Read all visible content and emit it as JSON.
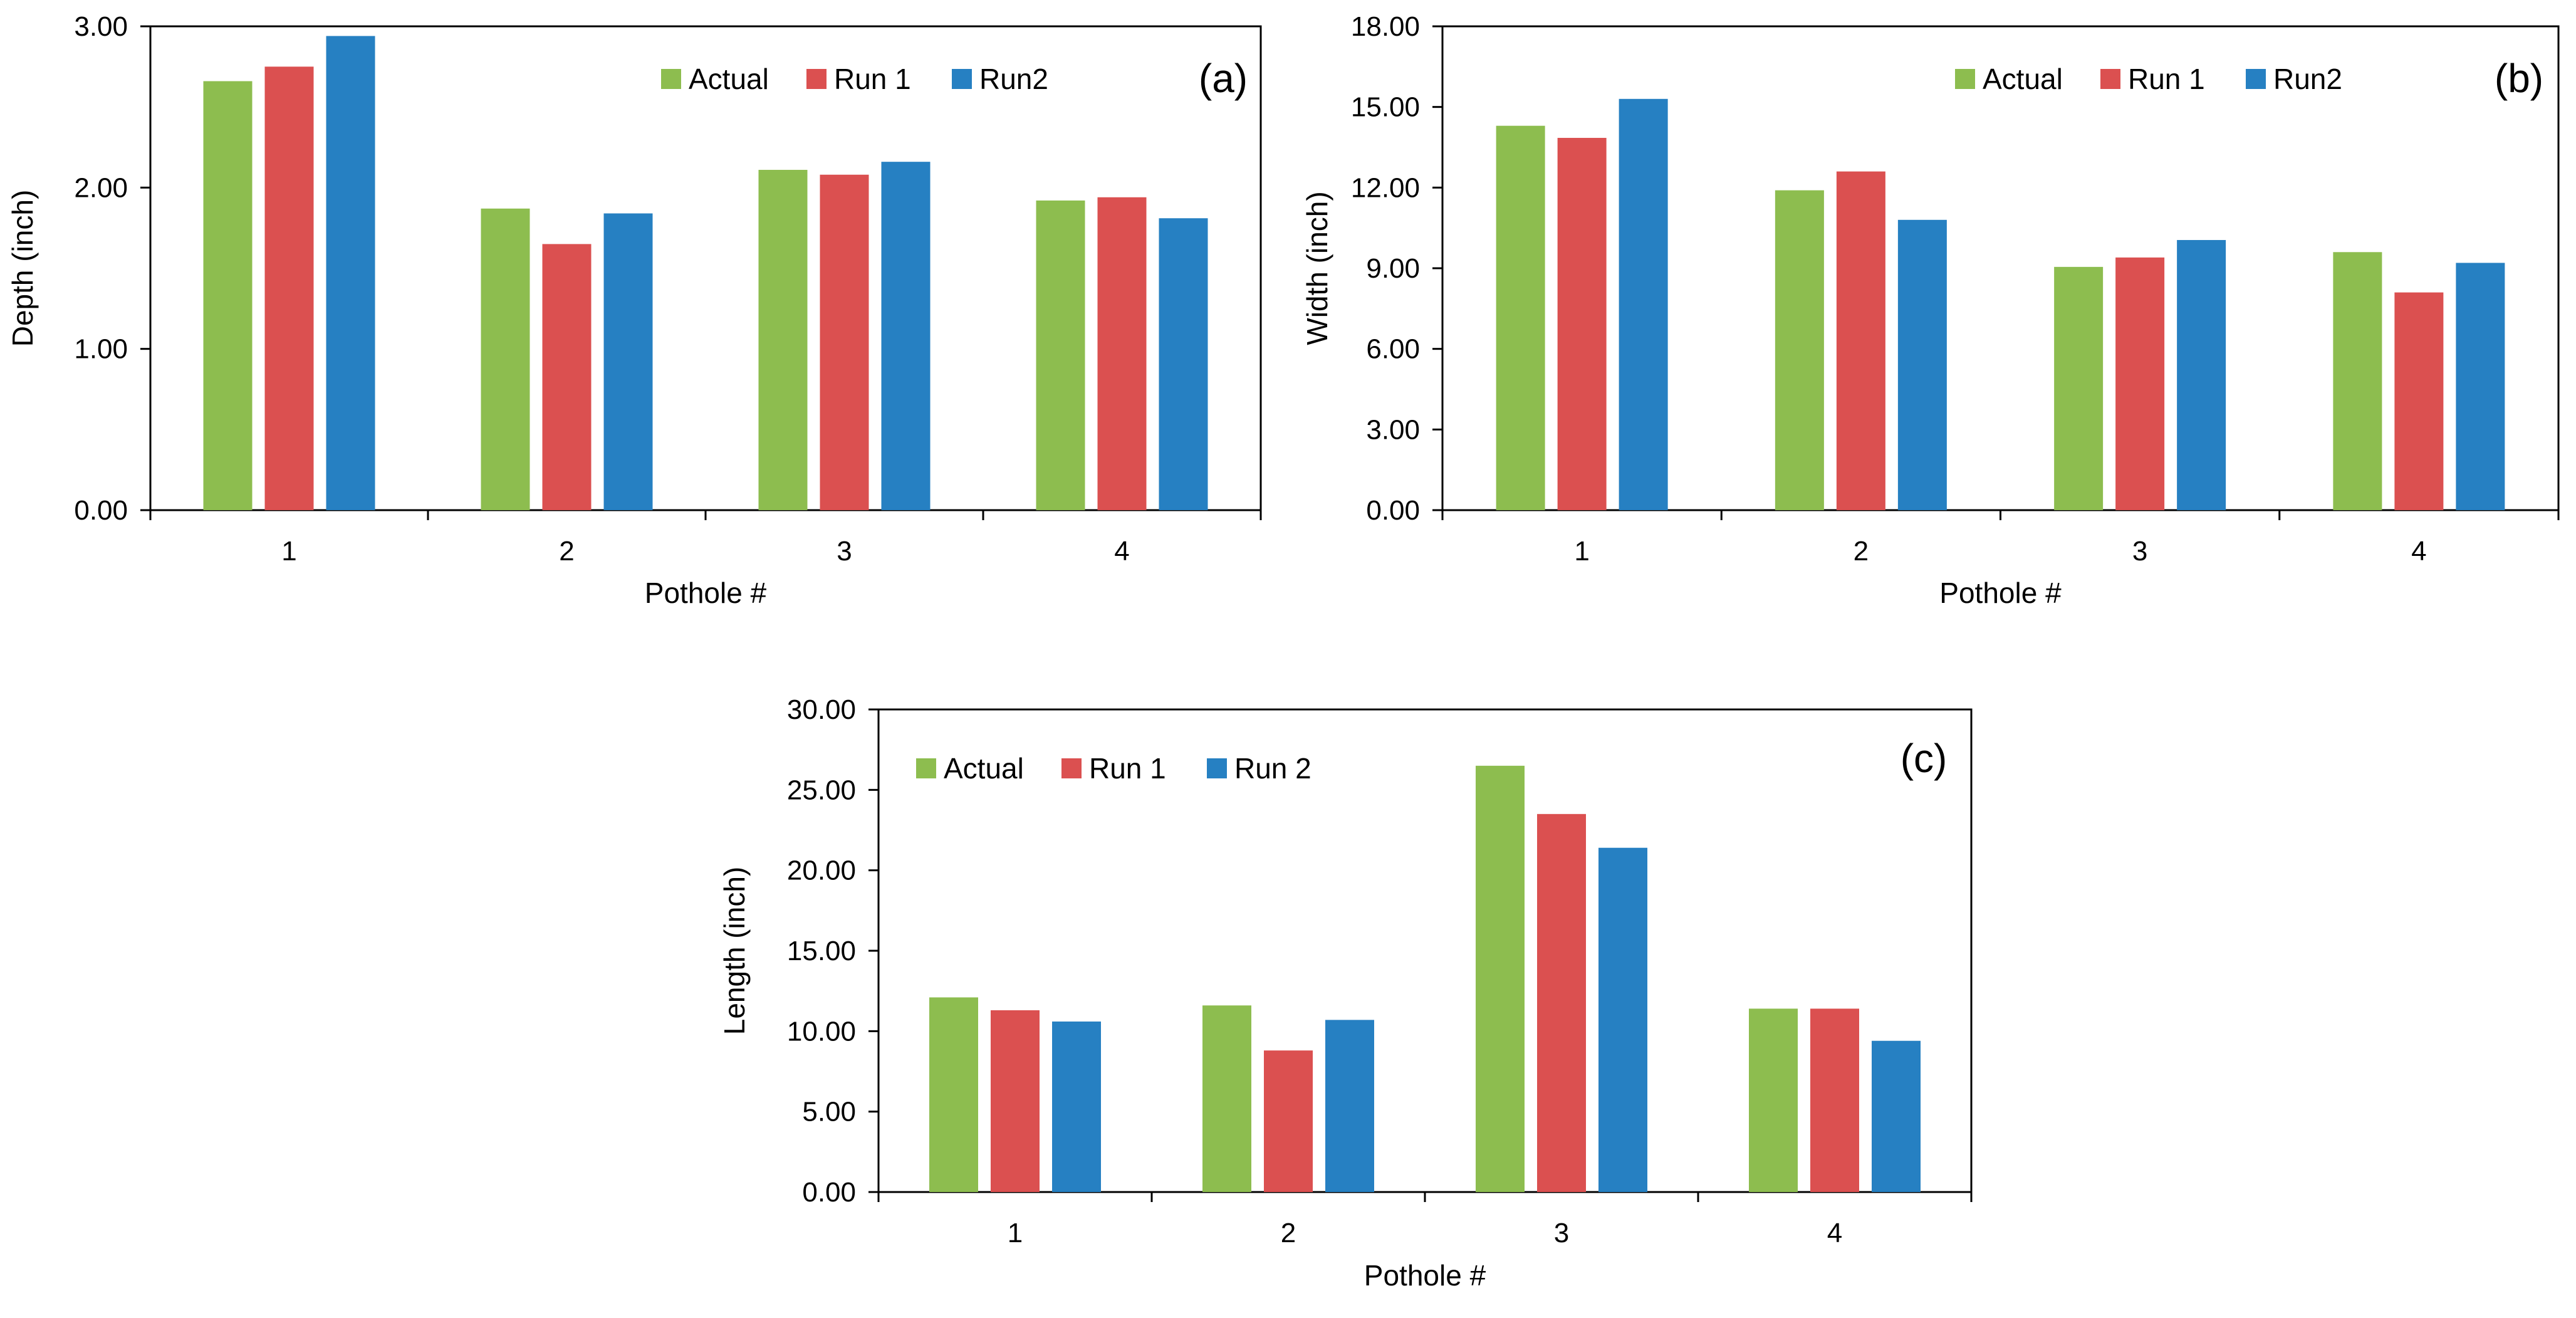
{
  "colors": {
    "actual": "#8DBD4F",
    "run1": "#DB5050",
    "run2": "#2680C2",
    "axis": "#000000"
  },
  "chart_data": [
    {
      "type": "bar",
      "panel_label": "(a)",
      "categories": [
        "1",
        "2",
        "3",
        "4"
      ],
      "series": [
        {
          "name": "Actual",
          "values": [
            2.66,
            1.87,
            2.11,
            1.92
          ]
        },
        {
          "name": "Run 1",
          "values": [
            2.75,
            1.65,
            2.08,
            1.94
          ]
        },
        {
          "name": "Run2",
          "values": [
            2.94,
            1.84,
            2.16,
            1.81
          ]
        }
      ],
      "title": "",
      "xlabel": "Pothole #",
      "ylabel": "Depth (inch)",
      "ylim": [
        0,
        3
      ],
      "yticks": [
        "0.00",
        "1.00",
        "2.00",
        "3.00"
      ],
      "grid": false,
      "legend": "top-center"
    },
    {
      "type": "bar",
      "panel_label": "(b)",
      "categories": [
        "1",
        "2",
        "3",
        "4"
      ],
      "series": [
        {
          "name": "Actual",
          "values": [
            14.3,
            11.9,
            9.05,
            9.6
          ]
        },
        {
          "name": "Run 1",
          "values": [
            13.85,
            12.6,
            9.4,
            8.1
          ]
        },
        {
          "name": "Run2",
          "values": [
            15.3,
            10.8,
            10.05,
            9.2
          ]
        }
      ],
      "title": "",
      "xlabel": "Pothole #",
      "ylabel": "Width (inch)",
      "ylim": [
        0,
        18
      ],
      "yticks": [
        "0.00",
        "3.00",
        "6.00",
        "9.00",
        "12.00",
        "15.00",
        "18.00"
      ],
      "grid": false,
      "legend": "top-center"
    },
    {
      "type": "bar",
      "panel_label": "(c)",
      "categories": [
        "1",
        "2",
        "3",
        "4"
      ],
      "series": [
        {
          "name": "Actual",
          "values": [
            12.1,
            11.6,
            26.5,
            11.4
          ]
        },
        {
          "name": "Run 1",
          "values": [
            11.3,
            8.8,
            23.5,
            11.4
          ]
        },
        {
          "name": "Run 2",
          "values": [
            10.6,
            10.7,
            21.4,
            9.4
          ]
        }
      ],
      "title": "",
      "xlabel": "Pothole #",
      "ylabel": "Length (inch)",
      "ylim": [
        0,
        30
      ],
      "yticks": [
        "0.00",
        "5.00",
        "10.00",
        "15.00",
        "20.00",
        "25.00",
        "30.00"
      ],
      "grid": false,
      "legend": "top-left"
    }
  ]
}
